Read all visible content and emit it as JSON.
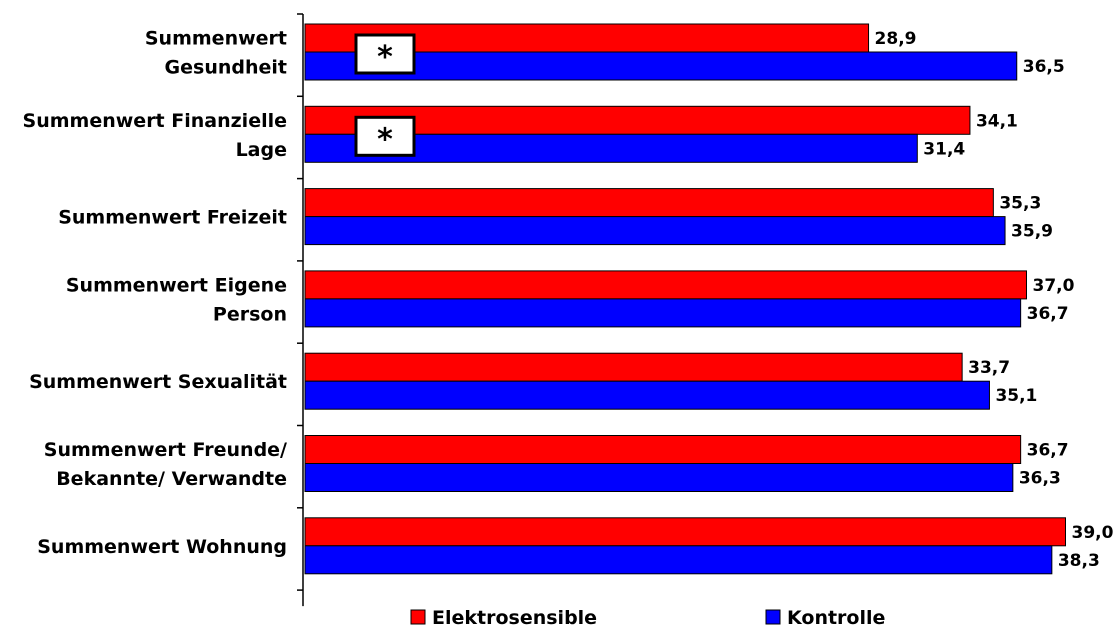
{
  "chart_data": {
    "type": "bar",
    "orientation": "horizontal",
    "categories": [
      [
        "Summenwert",
        "Gesundheit"
      ],
      [
        "Summenwert Finanzielle",
        "Lage"
      ],
      [
        "Summenwert Freizeit"
      ],
      [
        "Summenwert Eigene",
        "Person"
      ],
      [
        "Summenwert Sexualität"
      ],
      [
        "Summenwert Freunde/",
        "Bekannte/ Verwandte"
      ],
      [
        "Summenwert Wohnung"
      ]
    ],
    "series": [
      {
        "name": "Elektrosensible",
        "color": "#ff0000",
        "values": [
          28.9,
          34.1,
          35.3,
          37.0,
          33.7,
          36.7,
          39.0
        ],
        "labels": [
          "28,9",
          "34,1",
          "35,3",
          "37,0",
          "33,7",
          "36,7",
          "39,0"
        ]
      },
      {
        "name": "Kontrolle",
        "color": "#0000ff",
        "values": [
          36.5,
          31.4,
          35.9,
          36.7,
          35.1,
          36.3,
          38.3
        ],
        "labels": [
          "36,5",
          "31,4",
          "35,9",
          "36,7",
          "35,1",
          "36,3",
          "38,3"
        ]
      }
    ],
    "significance": [
      {
        "category_index": 0,
        "text": "*"
      },
      {
        "category_index": 1,
        "text": "*"
      }
    ],
    "xlim": [
      0,
      39.5
    ],
    "grid": false,
    "legend_position": "bottom"
  }
}
